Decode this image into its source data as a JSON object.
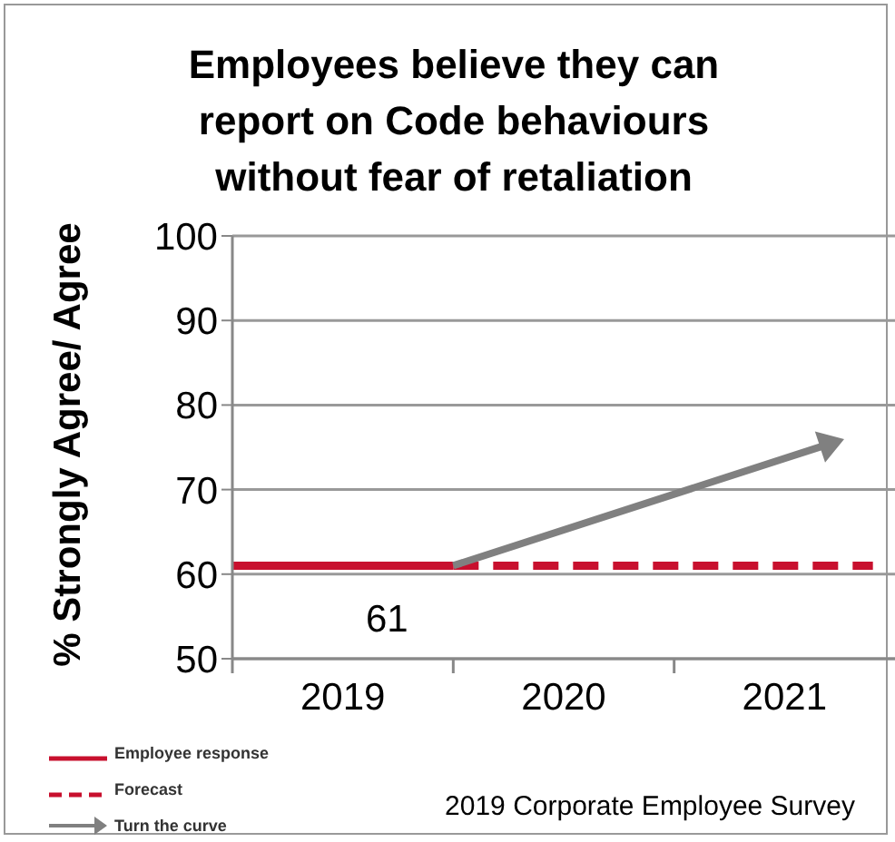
{
  "chart_data": {
    "type": "line",
    "title": "Employees believe they can report on Code behaviours without fear of retaliation",
    "ylabel": "% Strongly Agree/ Agree",
    "xlim": [
      2018.5,
      2021.5
    ],
    "xticks": [
      {
        "value": 2018.5,
        "label": null
      },
      {
        "value": 2019,
        "label": "2019"
      },
      {
        "value": 2019.5,
        "label": null
      },
      {
        "value": 2020,
        "label": "2020"
      },
      {
        "value": 2020.5,
        "label": null
      },
      {
        "value": 2021,
        "label": "2021"
      }
    ],
    "ylim": [
      50,
      100
    ],
    "yticks": [
      50,
      60,
      70,
      80,
      90,
      100
    ],
    "grid": "y",
    "legend": "bottom left",
    "marker": "none",
    "series": [
      {
        "name": "Employee response",
        "color": "#c8102e",
        "line_style": "solid",
        "x": [
          2018.5,
          2019.5
        ],
        "values": [
          61,
          61
        ]
      },
      {
        "name": "Forecast",
        "color": "#c8102e",
        "line_style": "dashed",
        "x": [
          2019.5,
          2021.4
        ],
        "values": [
          61,
          61
        ]
      }
    ],
    "annotations": [
      {
        "text": "61",
        "x": 2019.2,
        "y": 61
      },
      "Turn the curve",
      "2019 Corporate Employee Survey"
    ]
  }
}
